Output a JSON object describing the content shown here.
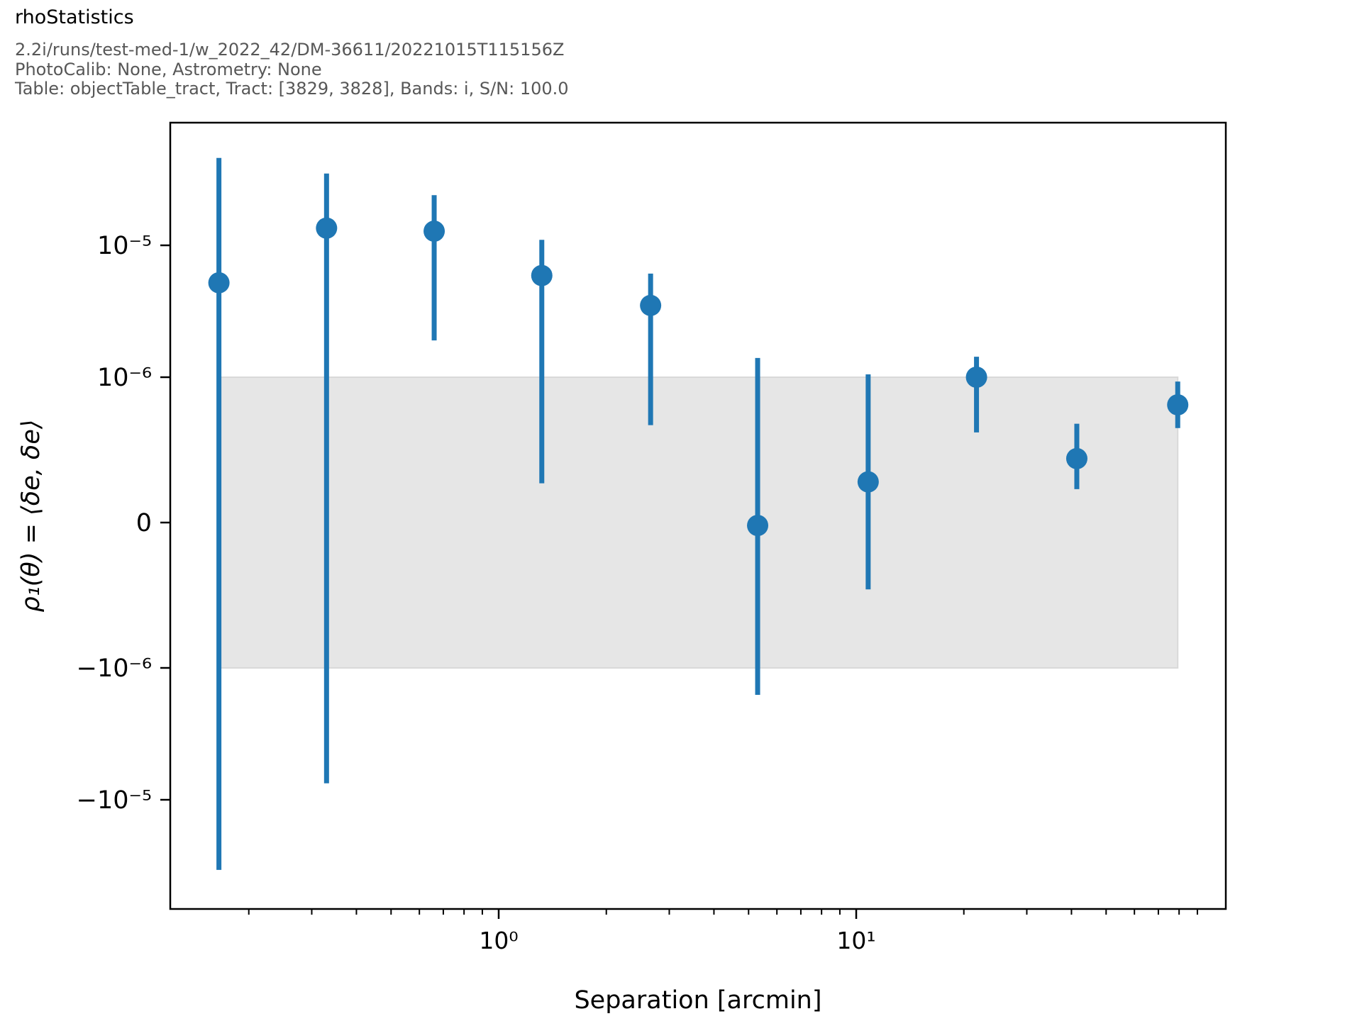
{
  "header": {
    "title": "rhoStatistics",
    "line1": "2.2i/runs/test-med-1/w_2022_42/DM-36611/20221015T115156Z",
    "line2": "PhotoCalib: None, Astrometry: None",
    "line3": "Table: objectTable_tract, Tract: [3829, 3828], Bands: i, S/N: 100.0"
  },
  "colors": {
    "accent": "#1f77b4",
    "band_fill": "#e6e6e6",
    "band_edge": "#d9d9d9",
    "axis": "#000000",
    "subtitle": "#575757"
  },
  "chart_data": {
    "type": "scatter",
    "title": "rhoStatistics",
    "xlabel": "Separation [arcmin]",
    "ylabel": "ρ₁(θ) = ⟨δe, δe⟩",
    "xscale": "log",
    "yscale": "symlog",
    "y_linthresh": 1e-06,
    "xlim": [
      0.12,
      108
    ],
    "ylim": [
      -6.5e-05,
      8.7e-05
    ],
    "grid": false,
    "legend": "none",
    "x_major_ticks": [
      {
        "value": 1,
        "label": "10⁰"
      },
      {
        "value": 10,
        "label": "10¹"
      }
    ],
    "y_major_ticks": [
      {
        "value": 1e-05,
        "label": "10⁻⁵"
      },
      {
        "value": 1e-06,
        "label": "10⁻⁶"
      },
      {
        "value": 0,
        "label": "0"
      },
      {
        "value": -1e-06,
        "label": "−10⁻⁶"
      },
      {
        "value": -1e-05,
        "label": "−10⁻⁵"
      }
    ],
    "band": {
      "ymin": -1e-06,
      "ymax": 1e-06,
      "note": "±1e-6 reference band spanning the data x-range"
    },
    "series": [
      {
        "name": "rho1",
        "marker": "circle",
        "color": "#1f77b4",
        "points": [
          {
            "x": 0.165,
            "y": 5.2e-06,
            "ylo": -3.4e-05,
            "yhi": 4.6e-05
          },
          {
            "x": 0.33,
            "y": 1.35e-05,
            "ylo": -7.5e-06,
            "yhi": 3.5e-05
          },
          {
            "x": 0.66,
            "y": 1.28e-05,
            "ylo": 1.9e-06,
            "yhi": 2.4e-05
          },
          {
            "x": 1.32,
            "y": 5.9e-06,
            "ylo": 2.7e-07,
            "yhi": 1.1e-05
          },
          {
            "x": 2.66,
            "y": 3.5e-06,
            "ylo": 6.7e-07,
            "yhi": 6.1e-06
          },
          {
            "x": 5.3,
            "y": -2e-08,
            "ylo": -1.6e-06,
            "yhi": 1.4e-06
          },
          {
            "x": 10.8,
            "y": 2.8e-07,
            "ylo": -4.6e-07,
            "yhi": 1.05e-06
          },
          {
            "x": 21.7,
            "y": 1e-06,
            "ylo": 6.2e-07,
            "yhi": 1.43e-06
          },
          {
            "x": 41.4,
            "y": 4.4e-07,
            "ylo": 2.3e-07,
            "yhi": 6.8e-07
          },
          {
            "x": 79.3,
            "y": 8.1e-07,
            "ylo": 6.5e-07,
            "yhi": 9.7e-07
          }
        ]
      }
    ]
  }
}
